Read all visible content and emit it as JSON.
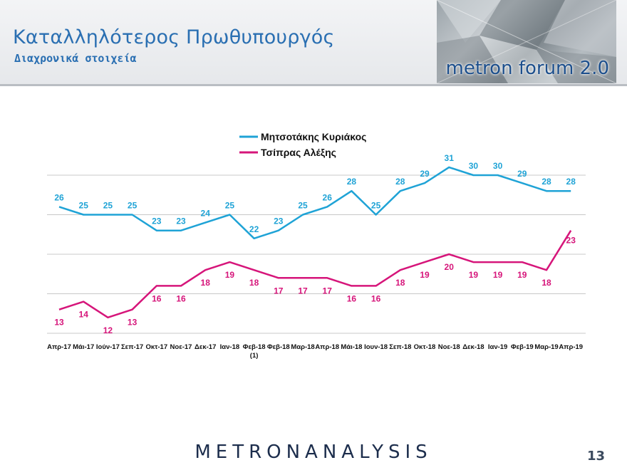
{
  "header": {
    "title": "Καταλληλότερος Πρωθυπουργός",
    "subtitle": "Διαχρονικά στοιχεία",
    "logo_text": "metron forum 2.0"
  },
  "footer": {
    "brand": "METRONANALYSIS",
    "page_number": "13"
  },
  "colors": {
    "series_1": "#1fa3d6",
    "series_2": "#d6157a",
    "title": "#2a6fb2"
  },
  "chart_data": {
    "type": "line",
    "title": "",
    "xlabel": "",
    "ylabel": "",
    "grid": true,
    "legend_position": "top-center",
    "categories": [
      "Απρ-17",
      "Μάι-17",
      "Ιούν-17",
      "Σεπ-17",
      "Οκτ-17",
      "Νοε-17",
      "Δεκ-17",
      "Ιαν-18",
      "Φεβ-18 (1)",
      "Φεβ-18",
      "Μαρ-18",
      "Απρ-18",
      "Μάι-18",
      "Ιουν-18",
      "Σεπ-18",
      "Οκτ-18",
      "Νοε-18",
      "Δεκ-18",
      "Ιαν-19",
      "Φεβ-19",
      "Μαρ-19",
      "Απρ-19"
    ],
    "series": [
      {
        "name": "Μητσοτάκης Κυριάκος",
        "values": [
          26,
          25,
          25,
          25,
          23,
          23,
          24,
          25,
          22,
          23,
          25,
          26,
          28,
          25,
          28,
          29,
          31,
          30,
          30,
          29,
          28,
          28
        ]
      },
      {
        "name": "Τσίπρας Αλέξης",
        "values": [
          13,
          14,
          12,
          13,
          16,
          16,
          18,
          19,
          18,
          17,
          17,
          17,
          16,
          16,
          18,
          19,
          20,
          19,
          19,
          19,
          18,
          23
        ]
      }
    ],
    "ylim": [
      10,
      30
    ]
  }
}
